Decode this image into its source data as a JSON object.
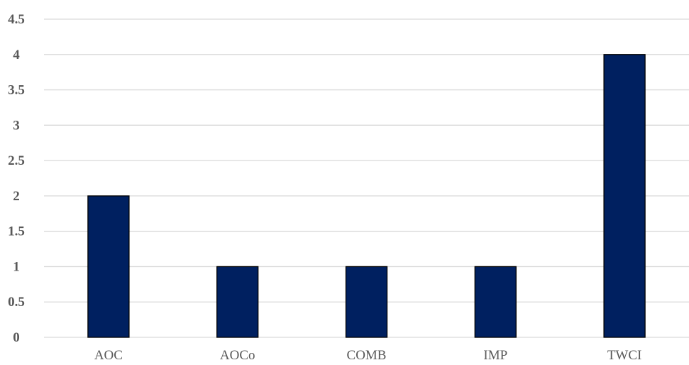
{
  "chart_data": {
    "type": "bar",
    "categories": [
      "AOC",
      "AOCo",
      "COMB",
      "IMP",
      "TWCI"
    ],
    "values": [
      2,
      1,
      1,
      1,
      4
    ],
    "yticks": [
      "0",
      "0.5",
      "1",
      "1.5",
      "2",
      "2.5",
      "3",
      "3.5",
      "4",
      "4.5"
    ],
    "ylim": [
      0,
      4.5
    ],
    "grid": true,
    "legend": false,
    "colors": {
      "bar": "#002060",
      "bar_border": "#000000",
      "grid": "#d9d9d9",
      "text": "#595959"
    }
  }
}
